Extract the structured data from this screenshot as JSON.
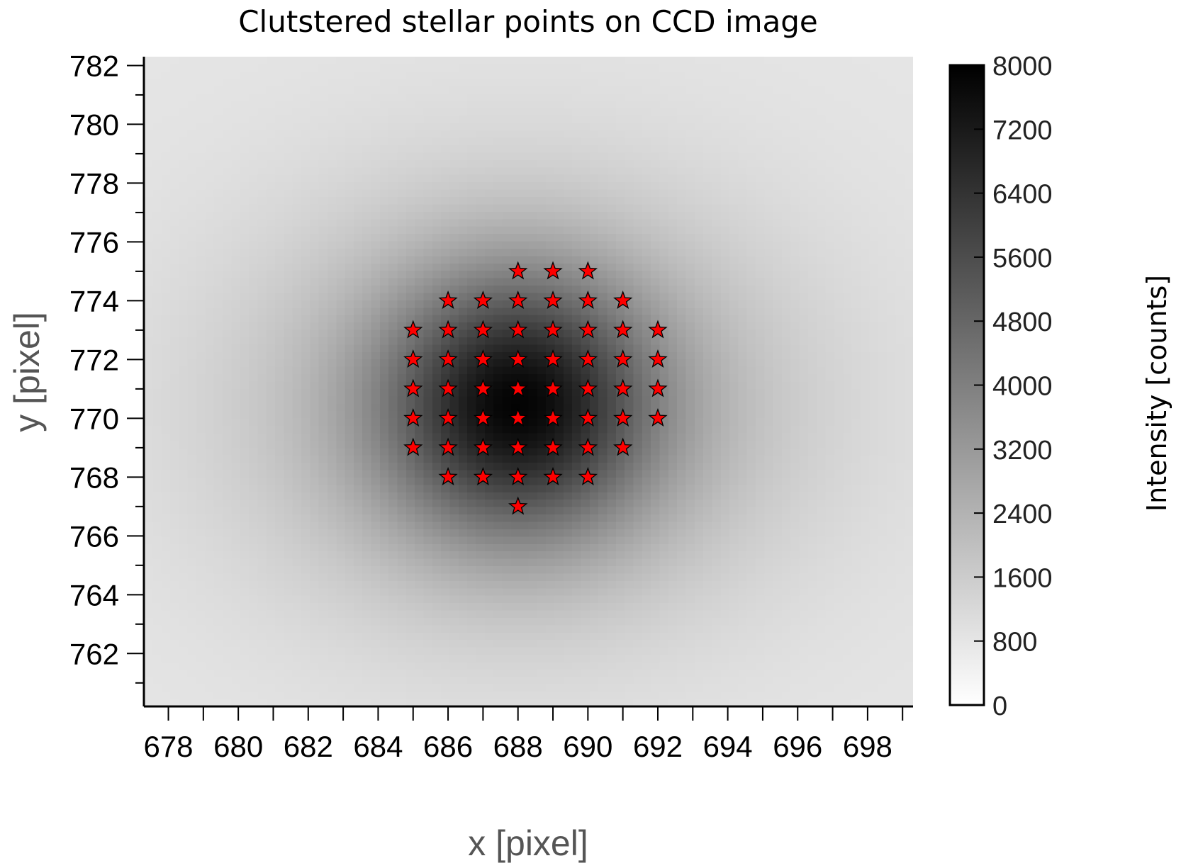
{
  "chart_data": {
    "type": "heatmap",
    "title": "Clutstered stellar points on CCD image",
    "xlabel": "x [pixel]",
    "ylabel": "y [pixel]",
    "xlim": [
      677.3,
      699.3
    ],
    "ylim": [
      760.2,
      782.3
    ],
    "x_ticks": [
      678,
      680,
      682,
      684,
      686,
      688,
      690,
      692,
      694,
      696,
      698
    ],
    "y_ticks": [
      762,
      764,
      766,
      768,
      770,
      772,
      774,
      776,
      778,
      780,
      782
    ],
    "x_minor_step": 1,
    "y_minor_step": 1,
    "grid": false,
    "colormap": "gray_r",
    "colorbar": {
      "label": "Intensity  [counts]",
      "range": [
        0,
        8000
      ],
      "ticks": [
        0,
        800,
        1600,
        2400,
        3200,
        4000,
        4800,
        5600,
        6400,
        7200,
        8000
      ]
    },
    "image": {
      "background": 800,
      "peak": 7900,
      "center": [
        688,
        770.5
      ],
      "sigma": [
        2.6,
        3.0
      ],
      "halo_peak": 2200,
      "halo_sigma": [
        5.5,
        5.0
      ]
    },
    "marker": {
      "shape": "star",
      "color": "#ff0000",
      "edgecolor": "#000000"
    },
    "points": [
      [
        688,
        775
      ],
      [
        689,
        775
      ],
      [
        690,
        775
      ],
      [
        686,
        774
      ],
      [
        687,
        774
      ],
      [
        688,
        774
      ],
      [
        689,
        774
      ],
      [
        690,
        774
      ],
      [
        691,
        774
      ],
      [
        685,
        773
      ],
      [
        686,
        773
      ],
      [
        687,
        773
      ],
      [
        688,
        773
      ],
      [
        689,
        773
      ],
      [
        690,
        773
      ],
      [
        691,
        773
      ],
      [
        692,
        773
      ],
      [
        685,
        772
      ],
      [
        686,
        772
      ],
      [
        687,
        772
      ],
      [
        688,
        772
      ],
      [
        689,
        772
      ],
      [
        690,
        772
      ],
      [
        691,
        772
      ],
      [
        692,
        772
      ],
      [
        685,
        771
      ],
      [
        686,
        771
      ],
      [
        687,
        771
      ],
      [
        688,
        771
      ],
      [
        689,
        771
      ],
      [
        690,
        771
      ],
      [
        691,
        771
      ],
      [
        692,
        771
      ],
      [
        685,
        770
      ],
      [
        686,
        770
      ],
      [
        687,
        770
      ],
      [
        688,
        770
      ],
      [
        689,
        770
      ],
      [
        690,
        770
      ],
      [
        691,
        770
      ],
      [
        692,
        770
      ],
      [
        685,
        769
      ],
      [
        686,
        769
      ],
      [
        687,
        769
      ],
      [
        688,
        769
      ],
      [
        689,
        769
      ],
      [
        690,
        769
      ],
      [
        691,
        769
      ],
      [
        686,
        768
      ],
      [
        687,
        768
      ],
      [
        688,
        768
      ],
      [
        689,
        768
      ],
      [
        690,
        768
      ],
      [
        688,
        767
      ]
    ]
  }
}
